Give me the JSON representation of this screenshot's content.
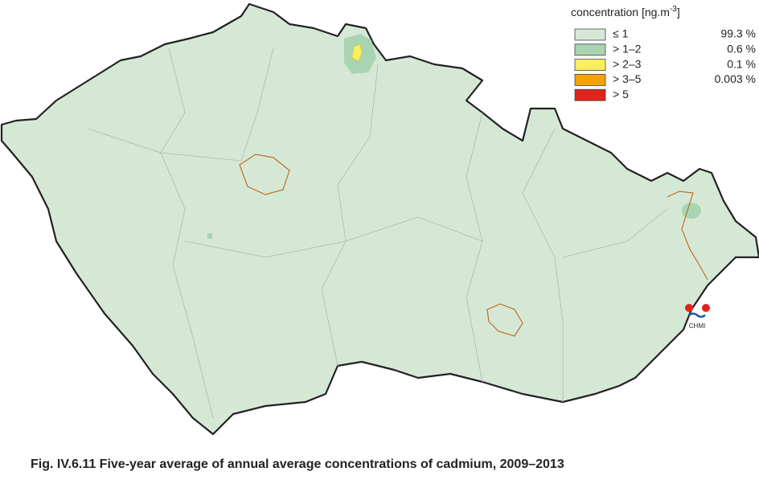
{
  "legend": {
    "title": "concentration [ng.m",
    "title_superscript": "-3",
    "title_suffix": "]",
    "entries": [
      {
        "label": "≤ 1",
        "share": "99.3 %",
        "color": "#d5e8d6"
      },
      {
        "label": "> 1–2",
        "share": "0.6 %",
        "color": "#a9d4b2"
      },
      {
        "label": "> 2–3",
        "share": "0.1 %",
        "color": "#f8ee5e"
      },
      {
        "label": "> 3–5",
        "share": "0.003 %",
        "color": "#f5a300"
      },
      {
        "label": "> 5",
        "share": "",
        "color": "#e2231a"
      }
    ]
  },
  "logo": "CHMI",
  "caption": "Fig. IV.6.11  Five-year average of annual average concentrations of cadmium, 2009–2013"
}
